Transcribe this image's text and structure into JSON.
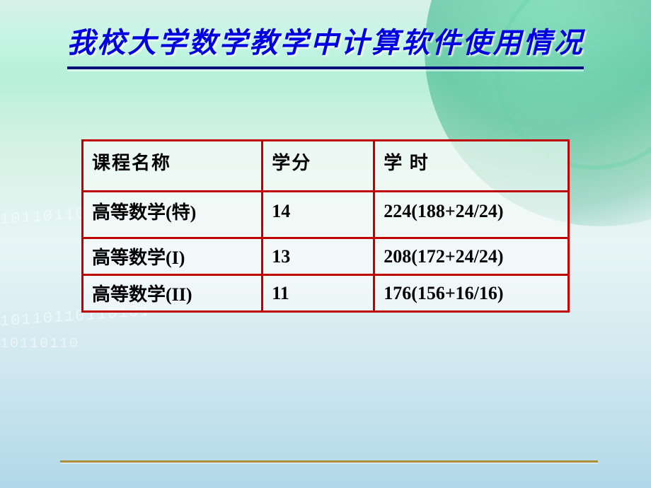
{
  "title": "我校大学数学教学中计算软件使用情况",
  "table": {
    "headers": {
      "name": "课程名称",
      "credit": "学分",
      "hours": "学 时"
    },
    "rows": [
      {
        "name": "高等数学(特)",
        "credit": "14",
        "hours": "224(188+24/24)"
      },
      {
        "name": "高等数学(I)",
        "credit": "13",
        "hours": "208(172+24/24)"
      },
      {
        "name": "高等数学(II)",
        "credit": "11",
        "hours": "176(156+16/16)"
      }
    ]
  },
  "decor": {
    "binary": "101101101101011011011"
  },
  "style": {
    "title_color": "#0000e0",
    "title_underline_color": "#00127a",
    "table_border_color": "#c00000",
    "table_bg": "rgba(248,252,250,0.62)",
    "bottom_line_color": "#ad8c3a",
    "title_fontsize": 40,
    "cell_fontsize": 26,
    "col_widths_pct": [
      37,
      23,
      40
    ]
  }
}
